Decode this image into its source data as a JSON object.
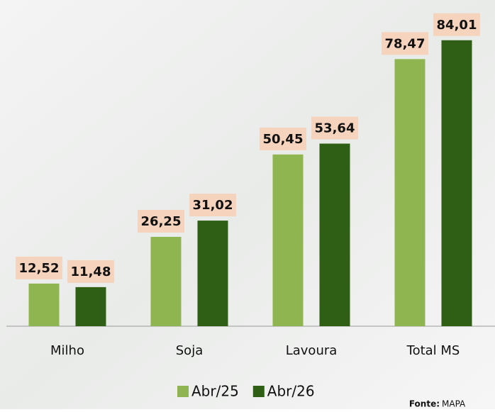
{
  "chart_data": {
    "type": "bar",
    "categories": [
      "Milho",
      "Soja",
      "Lavoura",
      "Total MS"
    ],
    "series": [
      {
        "name": "Abr/25",
        "color": "#8fb550",
        "values": [
          12.52,
          26.25,
          50.45,
          78.47
        ],
        "value_labels": [
          "12,52",
          "26,25",
          "50,45",
          "78,47"
        ]
      },
      {
        "name": "Abr/26",
        "color": "#2e5f14",
        "values": [
          11.48,
          31.02,
          53.64,
          84.01
        ],
        "value_labels": [
          "11,48",
          "31,02",
          "53,64",
          "84,01"
        ]
      }
    ],
    "ylim": [
      0,
      90
    ],
    "label_color": "#f6d3bd",
    "source_label": "Fonte:",
    "source": "MAPA"
  }
}
